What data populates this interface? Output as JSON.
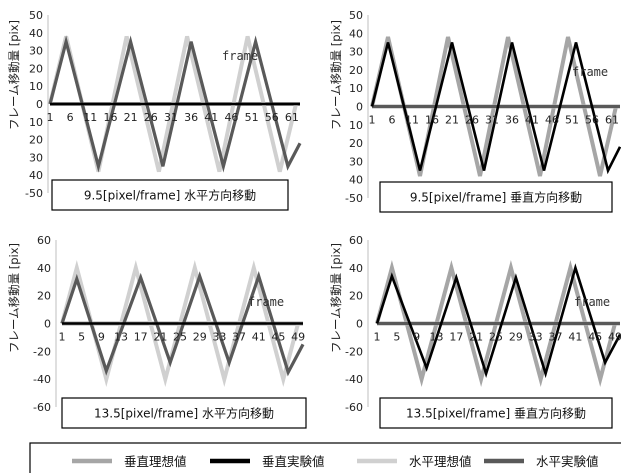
{
  "chart_data": [
    {
      "type": "line",
      "title": "9.5[pixel/frame] 水平方向移動",
      "ylabel": "フレーム移動量 [pix]",
      "xlabel": "frame",
      "ylim": [
        -50,
        50
      ],
      "yticks": [
        50,
        40,
        30,
        20,
        10,
        0,
        10,
        20,
        30,
        40,
        -50
      ],
      "x_range": [
        1,
        63
      ],
      "categories_shown": [
        "1",
        "6",
        "11",
        "16",
        "21",
        "26",
        "31",
        "36",
        "41",
        "46",
        "51",
        "56",
        "61"
      ],
      "series": [
        {
          "name": "垂直理想値",
          "color": "#a6a6a6",
          "x": [
            1,
            63
          ],
          "y": [
            0,
            0
          ]
        },
        {
          "name": "垂直実験値",
          "color": "#000000",
          "x": [
            1,
            63
          ],
          "y": [
            0,
            0
          ]
        },
        {
          "name": "水平理想値",
          "color": "#d0d0d0",
          "x": [
            1,
            5,
            13,
            20,
            28,
            35,
            43,
            50,
            58,
            62
          ],
          "y": [
            0,
            38,
            -38,
            38,
            -38,
            38,
            -38,
            38,
            -38,
            0
          ]
        },
        {
          "name": "水平実験値",
          "color": "#595959",
          "x": [
            1,
            5,
            13,
            21,
            29,
            36,
            44,
            52,
            60,
            63
          ],
          "y": [
            0,
            35,
            -35,
            35,
            -35,
            35,
            -35,
            35,
            -35,
            -22
          ]
        }
      ]
    },
    {
      "type": "line",
      "title": "9.5[pixel/frame] 垂直方向移動",
      "ylabel": "フレーム移動量 [pix]",
      "xlabel": "frame",
      "ylim": [
        -50,
        50
      ],
      "yticks": [
        50,
        40,
        30,
        20,
        10,
        0,
        10,
        20,
        30,
        40,
        -50
      ],
      "x_range": [
        1,
        63
      ],
      "categories_shown": [
        "1",
        "6",
        "11",
        "16",
        "21",
        "26",
        "31",
        "36",
        "41",
        "46",
        "51",
        "56",
        "61"
      ],
      "series": [
        {
          "name": "垂直理想値",
          "color": "#a6a6a6",
          "x": [
            1,
            5,
            13,
            20,
            28,
            35,
            43,
            50,
            58,
            62
          ],
          "y": [
            0,
            38,
            -38,
            38,
            -38,
            38,
            -38,
            38,
            -38,
            0
          ]
        },
        {
          "name": "垂直実験値",
          "color": "#000000",
          "x": [
            1,
            5,
            13,
            21,
            29,
            36,
            44,
            52,
            60,
            63
          ],
          "y": [
            0,
            35,
            -35,
            35,
            -35,
            35,
            -35,
            35,
            -35,
            -22
          ]
        },
        {
          "name": "水平理想値",
          "color": "#d0d0d0",
          "x": [
            1,
            63
          ],
          "y": [
            0,
            0
          ]
        },
        {
          "name": "水平実験値",
          "color": "#595959",
          "x": [
            1,
            63
          ],
          "y": [
            0,
            0
          ]
        }
      ]
    },
    {
      "type": "line",
      "title": "13.5[pixel/frame] 水平方向移動",
      "ylabel": "フレーム移動量 [pix]",
      "xlabel": "frame",
      "ylim": [
        -60,
        60
      ],
      "yticks": [
        60,
        40,
        20,
        0,
        -20,
        -40,
        -60
      ],
      "x_range": [
        1,
        50
      ],
      "categories_shown": [
        "1",
        "5",
        "9",
        "13",
        "17",
        "21",
        "25",
        "29",
        "33",
        "37",
        "41",
        "45",
        "49"
      ],
      "series": [
        {
          "name": "垂直理想値",
          "color": "#a6a6a6",
          "x": [
            1,
            50
          ],
          "y": [
            0,
            0
          ]
        },
        {
          "name": "垂直実験値",
          "color": "#000000",
          "x": [
            1,
            50
          ],
          "y": [
            0,
            0
          ]
        },
        {
          "name": "水平理想値",
          "color": "#d0d0d0",
          "x": [
            1,
            4,
            10,
            16,
            22,
            28,
            34,
            40,
            46,
            49
          ],
          "y": [
            0,
            40,
            -40,
            40,
            -40,
            40,
            -40,
            40,
            -40,
            0
          ]
        },
        {
          "name": "水平実験値",
          "color": "#595959",
          "x": [
            1,
            4,
            10,
            17,
            23,
            29,
            35,
            41,
            47,
            50
          ],
          "y": [
            0,
            32,
            -34,
            33,
            -28,
            34,
            -28,
            34,
            -35,
            -15
          ]
        }
      ]
    },
    {
      "type": "line",
      "title": "13.5[pixel/frame] 垂直方向移動",
      "ylabel": "フレーム移動量 [pix]",
      "xlabel": "frame",
      "ylim": [
        -60,
        60
      ],
      "yticks": [
        60,
        40,
        20,
        0,
        -20,
        -40,
        -60
      ],
      "x_range": [
        1,
        50
      ],
      "categories_shown": [
        "1",
        "5",
        "9",
        "13",
        "17",
        "21",
        "25",
        "29",
        "33",
        "37",
        "41",
        "45",
        "49"
      ],
      "series": [
        {
          "name": "垂直理想値",
          "color": "#a6a6a6",
          "x": [
            1,
            4,
            10,
            16,
            22,
            28,
            34,
            40,
            46,
            49
          ],
          "y": [
            0,
            40,
            -40,
            40,
            -40,
            40,
            -40,
            40,
            -40,
            0
          ]
        },
        {
          "name": "垂直実験値",
          "color": "#000000",
          "x": [
            1,
            4,
            11,
            17,
            23,
            29,
            35,
            41,
            47,
            50
          ],
          "y": [
            0,
            34,
            -32,
            33,
            -36,
            33,
            -36,
            40,
            -28,
            -8
          ]
        },
        {
          "name": "水平理想値",
          "color": "#d0d0d0",
          "x": [
            1,
            50
          ],
          "y": [
            0,
            0
          ]
        },
        {
          "name": "水平実験値",
          "color": "#595959",
          "x": [
            1,
            50
          ],
          "y": [
            0,
            0
          ]
        }
      ]
    }
  ],
  "legend": {
    "placement": "bottom",
    "items": [
      {
        "label": "垂直理想値",
        "color": "#a6a6a6"
      },
      {
        "label": "垂直実験値",
        "color": "#000000"
      },
      {
        "label": "水平理想値",
        "color": "#d0d0d0"
      },
      {
        "label": "水平実験値",
        "color": "#595959"
      }
    ]
  }
}
